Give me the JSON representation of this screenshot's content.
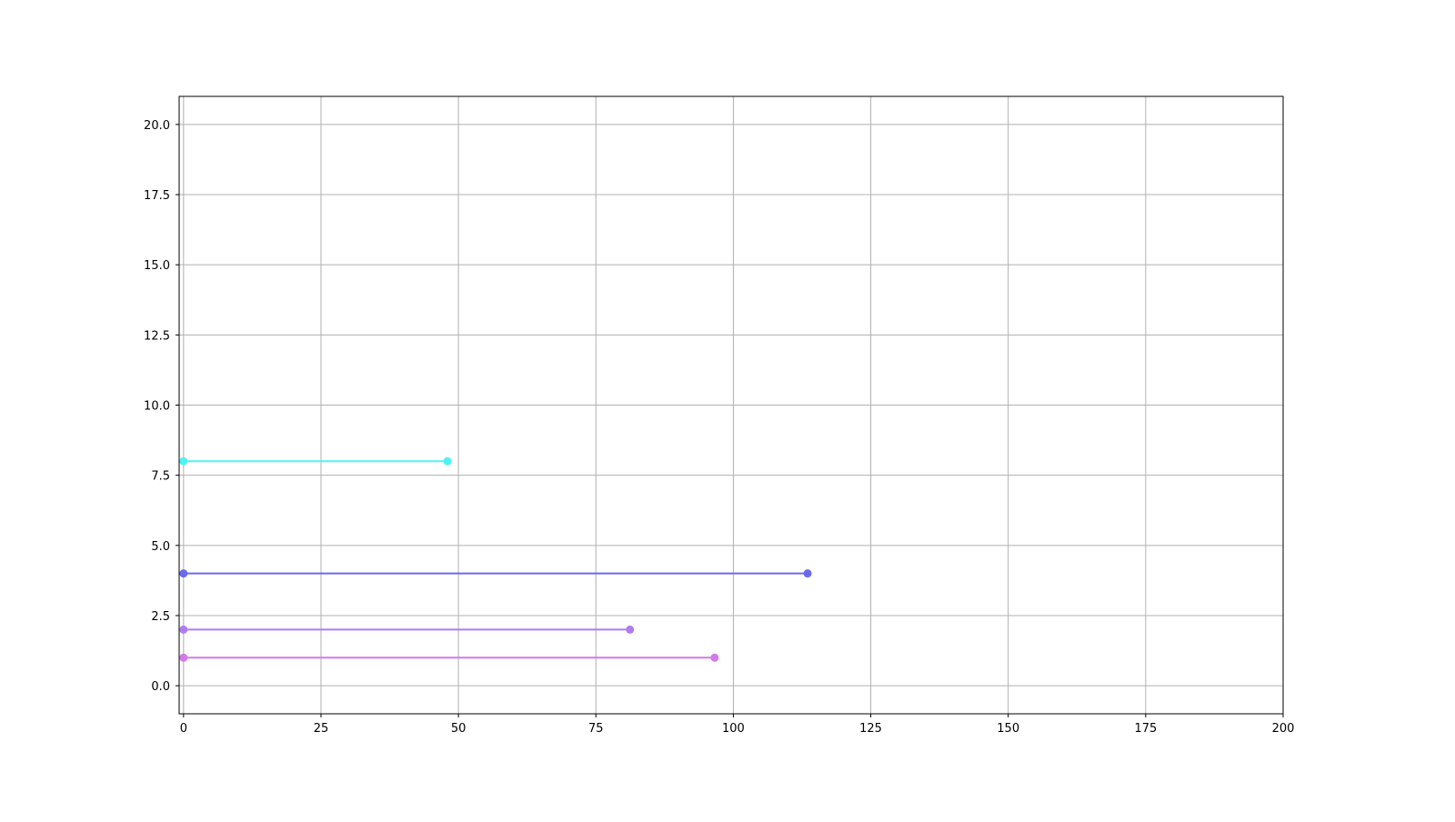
{
  "chart_data": {
    "type": "line",
    "title": "",
    "xlabel": "",
    "ylabel": "",
    "xlim": [
      -0.8,
      200
    ],
    "ylim": [
      -1.0,
      21.0
    ],
    "xticks": [
      0,
      25,
      50,
      75,
      100,
      125,
      150,
      175,
      200
    ],
    "xtick_labels": [
      "0",
      "25",
      "50",
      "75",
      "100",
      "125",
      "150",
      "175",
      "200"
    ],
    "yticks": [
      0,
      2.5,
      5,
      7.5,
      10,
      12.5,
      15,
      17.5,
      20
    ],
    "ytick_labels": [
      "0.0",
      "2.5",
      "5.0",
      "7.5",
      "10.0",
      "12.5",
      "15.0",
      "17.5",
      "20.0"
    ],
    "grid": true,
    "legend": "none",
    "series": [
      {
        "x": [
          0,
          48.0
        ],
        "y": [
          8,
          8
        ],
        "color": "#4ff2f2"
      },
      {
        "x": [
          0,
          113.5
        ],
        "y": [
          4,
          4
        ],
        "color": "#6a6aee"
      },
      {
        "x": [
          0,
          81.2
        ],
        "y": [
          2,
          2
        ],
        "color": "#b07cee"
      },
      {
        "x": [
          0,
          96.6
        ],
        "y": [
          1,
          1
        ],
        "color": "#d27ae9"
      }
    ]
  }
}
